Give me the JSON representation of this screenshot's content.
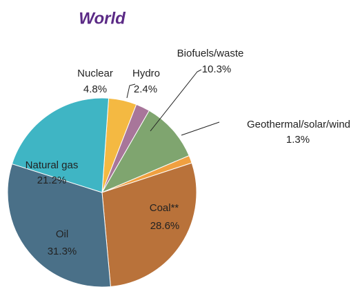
{
  "chart_data": {
    "type": "pie",
    "title": "World",
    "categories": [
      "Nuclear",
      "Hydro",
      "Biofuels/waste",
      "Geothermal/solar/wind",
      "Coal**",
      "Oil",
      "Natural gas"
    ],
    "values": [
      4.8,
      2.4,
      10.3,
      1.3,
      28.6,
      31.3,
      21.2
    ],
    "value_labels": [
      "4.8%",
      "2.4%",
      "10.3%",
      "1.3%",
      "28.6%",
      "31.3%",
      "21.2%"
    ],
    "colors": [
      "#f4b942",
      "#a8769a",
      "#7fa56f",
      "#f0a040",
      "#b9723a",
      "#4a7088",
      "#3fb5c4"
    ]
  }
}
